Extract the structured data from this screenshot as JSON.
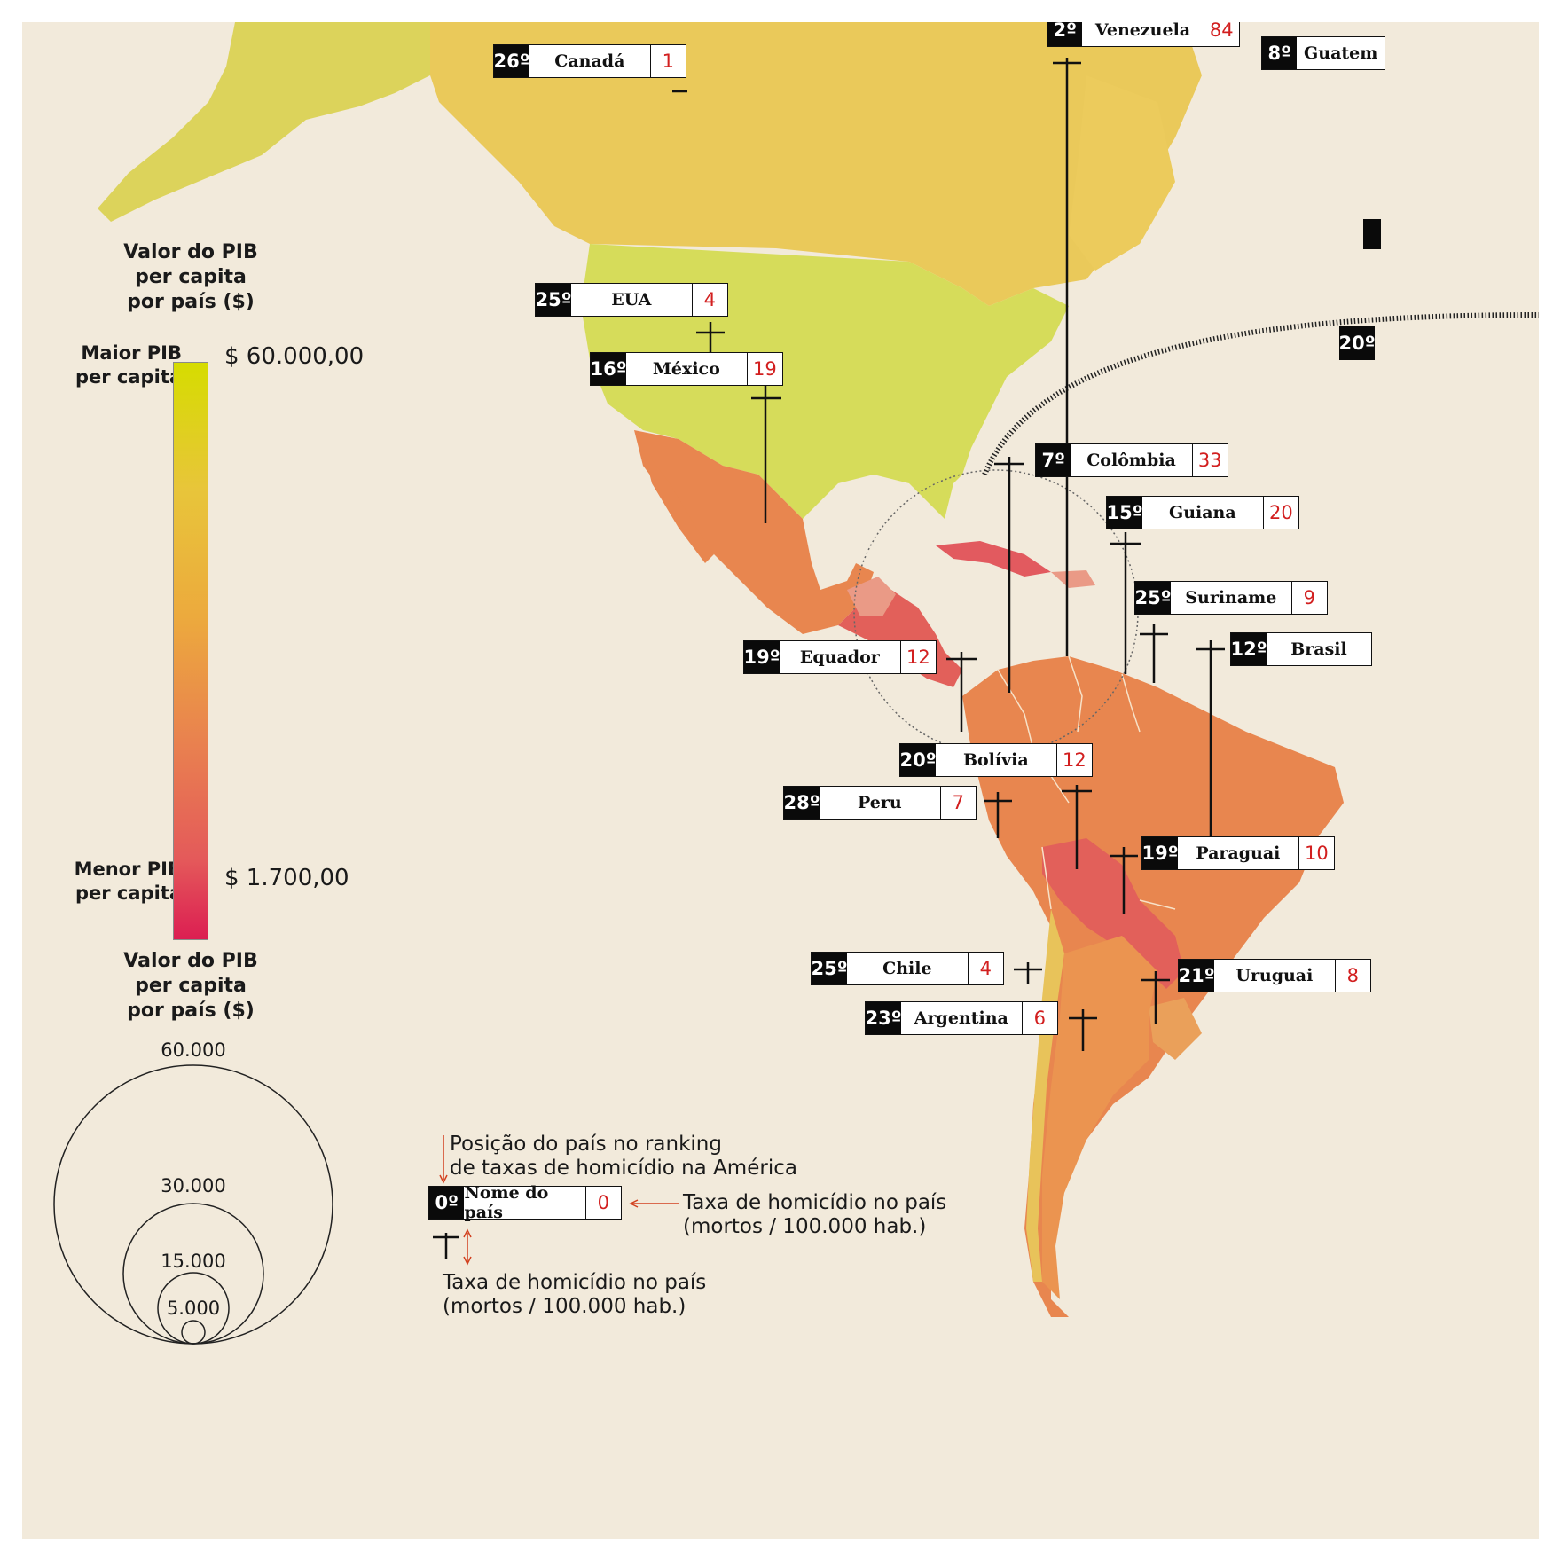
{
  "legend": {
    "gradient_title": [
      "Valor do PIB",
      "per capita",
      "por país ($)"
    ],
    "max_label": [
      "Maior PIB",
      "per capita"
    ],
    "min_label": [
      "Menor PIB",
      "per capita"
    ],
    "max_value": "$ 60.000,00",
    "min_value": "$ 1.700,00",
    "gradient_colors": [
      "#d6dc00",
      "#e8c53a",
      "#ecaa3d",
      "#e9814f",
      "#e45a5a",
      "#dc1e52"
    ],
    "circle_title": [
      "Valor do PIB",
      "per capita",
      "por país ($)"
    ],
    "circle_values": [
      "60.000",
      "30.000",
      "15.000",
      "5.000"
    ]
  },
  "key": {
    "ranking_note": [
      "Posição do país no ranking",
      "de taxas de homicídio na América"
    ],
    "example_rank": "0º",
    "example_name": "Nome do país",
    "example_rate": "0",
    "rate_note": [
      "Taxa de homicídio no país",
      "(mortos / 100.000 hab.)"
    ],
    "cross_note": [
      "Taxa de homicídio no país",
      "(mortos / 100.000 hab.)"
    ]
  },
  "countries": [
    {
      "rank": "26º",
      "name": "Canadá",
      "rate": "1"
    },
    {
      "rank": "2º",
      "name": "Venezuela",
      "rate": "84"
    },
    {
      "rank": "8º",
      "name": "Guatem",
      "rate": ""
    },
    {
      "rank": "25º",
      "name": "EUA",
      "rate": "4"
    },
    {
      "rank": "16º",
      "name": "México",
      "rate": "19"
    },
    {
      "rank": "7º",
      "name": "Colômbia",
      "rate": "33"
    },
    {
      "rank": "15º",
      "name": "Guiana",
      "rate": "20"
    },
    {
      "rank": "25º",
      "name": "Suriname",
      "rate": "9"
    },
    {
      "rank": "12º",
      "name": "Brasil",
      "rate": ""
    },
    {
      "rank": "19º",
      "name": "Equador",
      "rate": "12"
    },
    {
      "rank": "20º",
      "name": "Bolívia",
      "rate": "12"
    },
    {
      "rank": "28º",
      "name": "Peru",
      "rate": "7"
    },
    {
      "rank": "19º",
      "name": "Paraguai",
      "rate": "10"
    },
    {
      "rank": "25º",
      "name": "Chile",
      "rate": "4"
    },
    {
      "rank": "21º",
      "name": "Uruguai",
      "rate": "8"
    },
    {
      "rank": "23º",
      "name": "Argentina",
      "rate": "6"
    },
    {
      "rank": "20º",
      "name": "",
      "rate": ""
    }
  ],
  "colors": {
    "background": "#f2eadb",
    "high_gdp": "#d6dc5a",
    "canada": "#eac95a",
    "mid": "#e8864f",
    "low": "#e2605a",
    "rate_text": "#d21f1f"
  }
}
